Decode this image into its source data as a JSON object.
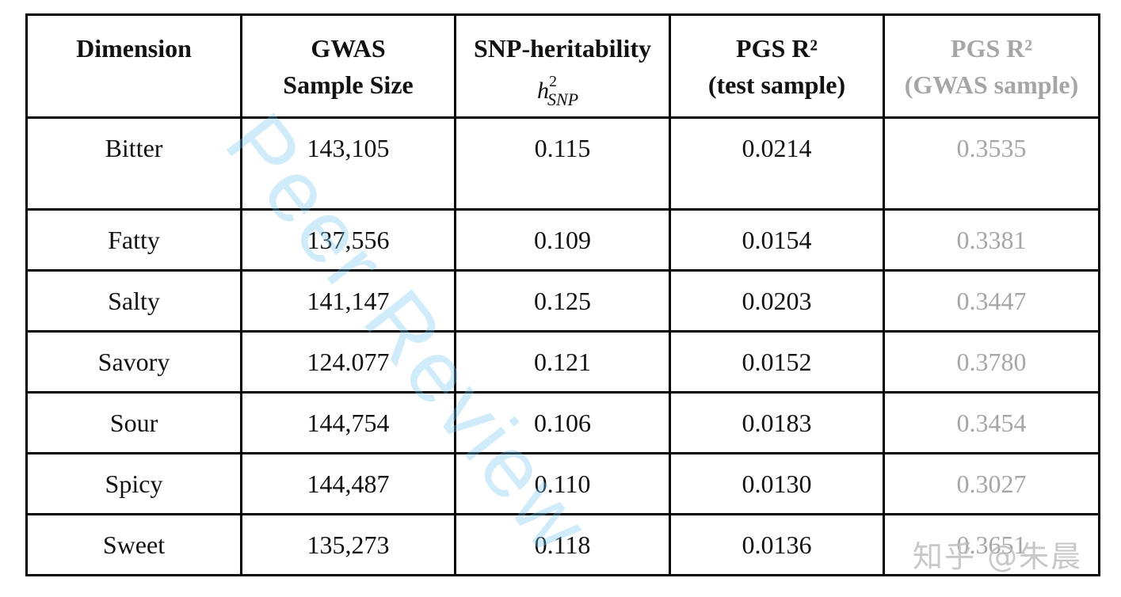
{
  "watermark_text": "Peer Review",
  "site_watermark": "知乎 @朱晨",
  "headers": [
    {
      "line1": "Dimension",
      "line2": ""
    },
    {
      "line1": "GWAS",
      "line2": "Sample Size"
    },
    {
      "line1": "SNP-heritability",
      "line2": ""
    },
    {
      "line1": "PGS R²",
      "line2": "(test sample)"
    },
    {
      "line1": "PGS R²",
      "line2": "(GWAS sample)"
    }
  ],
  "heritability_symbol": {
    "base": "h",
    "sup": "2",
    "sub": "SNP"
  },
  "rows": [
    {
      "dimension": "Bitter",
      "sample_size": "143,105",
      "heritability": "0.115",
      "pgs_test": "0.0214",
      "pgs_gwas": "0.3535"
    },
    {
      "dimension": "Fatty",
      "sample_size": "137,556",
      "heritability": "0.109",
      "pgs_test": "0.0154",
      "pgs_gwas": "0.3381"
    },
    {
      "dimension": "Salty",
      "sample_size": "141,147",
      "heritability": "0.125",
      "pgs_test": "0.0203",
      "pgs_gwas": "0.3447"
    },
    {
      "dimension": "Savory",
      "sample_size": "124.077",
      "heritability": "0.121",
      "pgs_test": "0.0152",
      "pgs_gwas": "0.3780"
    },
    {
      "dimension": "Sour",
      "sample_size": "144,754",
      "heritability": "0.106",
      "pgs_test": "0.0183",
      "pgs_gwas": "0.3454"
    },
    {
      "dimension": "Spicy",
      "sample_size": "144,487",
      "heritability": "0.110",
      "pgs_test": "0.0130",
      "pgs_gwas": "0.3027"
    },
    {
      "dimension": "Sweet",
      "sample_size": "135,273",
      "heritability": "0.118",
      "pgs_test": "0.0136",
      "pgs_gwas": "0.3651"
    }
  ],
  "colors": {
    "gray_column": "#a6a6a6",
    "watermark": "#78c8f0"
  }
}
